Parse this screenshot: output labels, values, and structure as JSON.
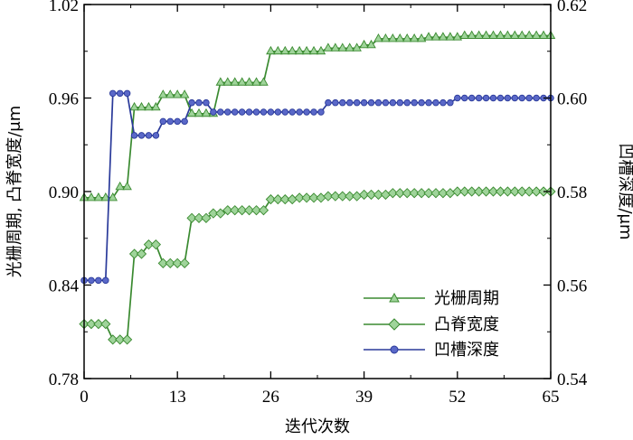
{
  "chart_data": {
    "type": "line",
    "xlabel": "迭代次数",
    "ylabel_left": "光栅周期, 凸脊宽度/μm",
    "ylabel_right": "凹槽深度/μm",
    "xlim": [
      0,
      65
    ],
    "ylim_left": [
      0.78,
      1.02
    ],
    "ylim_right": [
      0.54,
      0.62
    ],
    "x_ticks": [
      0,
      13,
      26,
      39,
      52,
      65
    ],
    "x_tick_labels": [
      "0",
      "13",
      "26",
      "39",
      "52",
      "65"
    ],
    "y_left_ticks": [
      0.78,
      0.84,
      0.9,
      0.96,
      1.02
    ],
    "y_left_tick_labels": [
      "0.78",
      "0.84",
      "0.90",
      "0.96",
      "1.02"
    ],
    "y_right_ticks": [
      0.54,
      0.56,
      0.58,
      0.6,
      0.62
    ],
    "y_right_tick_labels": [
      "0.54",
      "0.56",
      "0.58",
      "0.60",
      "0.62"
    ],
    "grid": false,
    "legend_position": "bottom-right",
    "colors": {
      "green": "#3a8a30",
      "blue": "#2a3a9a",
      "axis": "#000000"
    },
    "series": [
      {
        "name": "光栅周期",
        "axis": "left",
        "marker": "triangle",
        "color": "#3a8a30",
        "x": [
          0,
          1,
          2,
          3,
          4,
          5,
          6,
          7,
          8,
          9,
          10,
          11,
          12,
          13,
          14,
          15,
          16,
          17,
          18,
          19,
          20,
          21,
          22,
          23,
          24,
          25,
          26,
          27,
          28,
          29,
          30,
          31,
          32,
          33,
          34,
          35,
          36,
          37,
          38,
          39,
          40,
          41,
          42,
          43,
          44,
          45,
          46,
          47,
          48,
          49,
          50,
          51,
          52,
          53,
          54,
          55,
          56,
          57,
          58,
          59,
          60,
          61,
          62,
          63,
          64,
          65
        ],
        "y": [
          0.896,
          0.896,
          0.896,
          0.896,
          0.896,
          0.903,
          0.903,
          0.954,
          0.954,
          0.954,
          0.954,
          0.962,
          0.962,
          0.962,
          0.962,
          0.95,
          0.95,
          0.95,
          0.95,
          0.97,
          0.97,
          0.97,
          0.97,
          0.97,
          0.97,
          0.97,
          0.99,
          0.99,
          0.99,
          0.99,
          0.99,
          0.99,
          0.99,
          0.99,
          0.992,
          0.992,
          0.992,
          0.992,
          0.992,
          0.994,
          0.994,
          0.998,
          0.998,
          0.998,
          0.998,
          0.998,
          0.998,
          0.998,
          0.999,
          0.999,
          0.999,
          0.999,
          0.999,
          1.0,
          1.0,
          1.0,
          1.0,
          1.0,
          1.0,
          1.0,
          1.0,
          1.0,
          1.0,
          1.0,
          1.0,
          1.0
        ]
      },
      {
        "name": "凸脊宽度",
        "axis": "left",
        "marker": "diamond",
        "color": "#3a8a30",
        "x": [
          0,
          1,
          2,
          3,
          4,
          5,
          6,
          7,
          8,
          9,
          10,
          11,
          12,
          13,
          14,
          15,
          16,
          17,
          18,
          19,
          20,
          21,
          22,
          23,
          24,
          25,
          26,
          27,
          28,
          29,
          30,
          31,
          32,
          33,
          34,
          35,
          36,
          37,
          38,
          39,
          40,
          41,
          42,
          43,
          44,
          45,
          46,
          47,
          48,
          49,
          50,
          51,
          52,
          53,
          54,
          55,
          56,
          57,
          58,
          59,
          60,
          61,
          62,
          63,
          64,
          65
        ],
        "y": [
          0.815,
          0.815,
          0.815,
          0.815,
          0.805,
          0.805,
          0.805,
          0.86,
          0.86,
          0.866,
          0.866,
          0.854,
          0.854,
          0.854,
          0.854,
          0.883,
          0.883,
          0.883,
          0.886,
          0.886,
          0.888,
          0.888,
          0.888,
          0.888,
          0.888,
          0.888,
          0.895,
          0.895,
          0.895,
          0.895,
          0.896,
          0.896,
          0.896,
          0.896,
          0.897,
          0.897,
          0.897,
          0.897,
          0.897,
          0.898,
          0.898,
          0.898,
          0.898,
          0.899,
          0.899,
          0.899,
          0.899,
          0.899,
          0.899,
          0.899,
          0.899,
          0.899,
          0.9,
          0.9,
          0.9,
          0.9,
          0.9,
          0.9,
          0.9,
          0.9,
          0.9,
          0.9,
          0.9,
          0.9,
          0.9,
          0.9
        ]
      },
      {
        "name": "凹槽深度",
        "axis": "right",
        "marker": "circle",
        "color": "#2a3a9a",
        "x": [
          0,
          1,
          2,
          3,
          4,
          5,
          6,
          7,
          8,
          9,
          10,
          11,
          12,
          13,
          14,
          15,
          16,
          17,
          18,
          19,
          20,
          21,
          22,
          23,
          24,
          25,
          26,
          27,
          28,
          29,
          30,
          31,
          32,
          33,
          34,
          35,
          36,
          37,
          38,
          39,
          40,
          41,
          42,
          43,
          44,
          45,
          46,
          47,
          48,
          49,
          50,
          51,
          52,
          53,
          54,
          55,
          56,
          57,
          58,
          59,
          60,
          61,
          62,
          63,
          64,
          65
        ],
        "y": [
          0.561,
          0.561,
          0.561,
          0.561,
          0.601,
          0.601,
          0.601,
          0.592,
          0.592,
          0.592,
          0.592,
          0.595,
          0.595,
          0.595,
          0.595,
          0.599,
          0.599,
          0.599,
          0.597,
          0.597,
          0.597,
          0.597,
          0.597,
          0.597,
          0.597,
          0.597,
          0.597,
          0.597,
          0.597,
          0.597,
          0.597,
          0.597,
          0.597,
          0.597,
          0.599,
          0.599,
          0.599,
          0.599,
          0.599,
          0.599,
          0.599,
          0.599,
          0.599,
          0.599,
          0.599,
          0.599,
          0.599,
          0.599,
          0.599,
          0.599,
          0.599,
          0.599,
          0.6,
          0.6,
          0.6,
          0.6,
          0.6,
          0.6,
          0.6,
          0.6,
          0.6,
          0.6,
          0.6,
          0.6,
          0.6,
          0.6
        ]
      }
    ]
  }
}
